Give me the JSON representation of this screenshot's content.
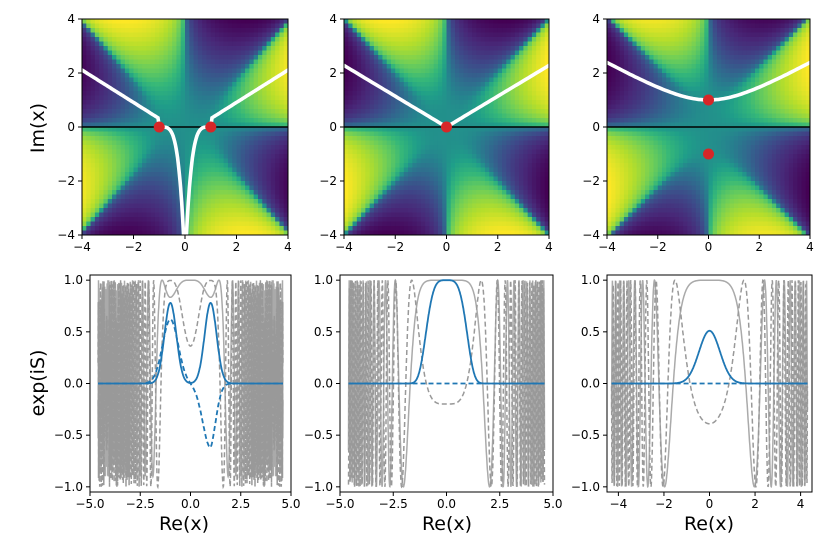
{
  "chart_data": {
    "type": "figure-grid",
    "top_row": {
      "type": "heatmap",
      "ylabel": "Im(x)",
      "colormap": "viridis",
      "ylim": [
        -4,
        4
      ],
      "panels": [
        {
          "xlim": [
            -4,
            4
          ],
          "ylim": [
            -4,
            4
          ],
          "xticks": [
            "−4",
            "−2",
            "0",
            "2",
            "4"
          ],
          "yticks": [
            "−4",
            "−2",
            "0",
            "2",
            "4"
          ],
          "saddles": [
            {
              "x": -1,
              "y": 0
            },
            {
              "x": 1,
              "y": 0
            }
          ]
        },
        {
          "xlim": [
            -4,
            4
          ],
          "ylim": [
            -4,
            4
          ],
          "xticks": [
            "−4",
            "−2",
            "0",
            "2",
            "4"
          ],
          "yticks": [
            "−4",
            "−2",
            "0",
            "2",
            "4"
          ],
          "saddles": [
            {
              "x": 0,
              "y": 0
            }
          ]
        },
        {
          "xlim": [
            -4,
            4
          ],
          "ylim": [
            -4,
            4
          ],
          "xticks": [
            "−4",
            "−2",
            "0",
            "2",
            "4"
          ],
          "yticks": [
            "−4",
            "−2",
            "0",
            "2",
            "4"
          ],
          "saddles": [
            {
              "x": 0,
              "y": 1
            },
            {
              "x": 0,
              "y": -1
            }
          ]
        }
      ]
    },
    "bottom_row": {
      "type": "line",
      "ylabel": "exp(iS)",
      "xlabel": "Re(x)",
      "ylim": [
        -1.05,
        1.05
      ],
      "panels": [
        {
          "xlim": [
            -5.0,
            5.0
          ],
          "xticks": [
            "−5.0",
            "−2.5",
            "0.0",
            "2.5",
            "5.0"
          ],
          "yticks": [
            "−1.0",
            "−0.5",
            "0.0",
            "0.5",
            "1.0"
          ]
        },
        {
          "xlim": [
            -5.0,
            5.0
          ],
          "xticks": [
            "−5.0",
            "−2.5",
            "0.0",
            "2.5",
            "5.0"
          ],
          "yticks": [
            "−1.0",
            "−0.5",
            "0.0",
            "0.5",
            "1.0"
          ]
        },
        {
          "xlim": [
            -4.5,
            4.5
          ],
          "xticks": [
            "−4",
            "−2",
            "0",
            "2",
            "4"
          ],
          "yticks": [
            "−1.0",
            "−0.5",
            "0.0",
            "0.5",
            "1.0"
          ]
        }
      ],
      "series": [
        {
          "name": "grey-solid",
          "color": "#aaaaaa",
          "style": "solid"
        },
        {
          "name": "grey-dashed",
          "color": "#999999",
          "style": "dashed"
        },
        {
          "name": "blue-solid",
          "color": "#1f77b4",
          "style": "solid"
        },
        {
          "name": "blue-dashed",
          "color": "#1f77b4",
          "style": "dashed"
        }
      ]
    }
  }
}
